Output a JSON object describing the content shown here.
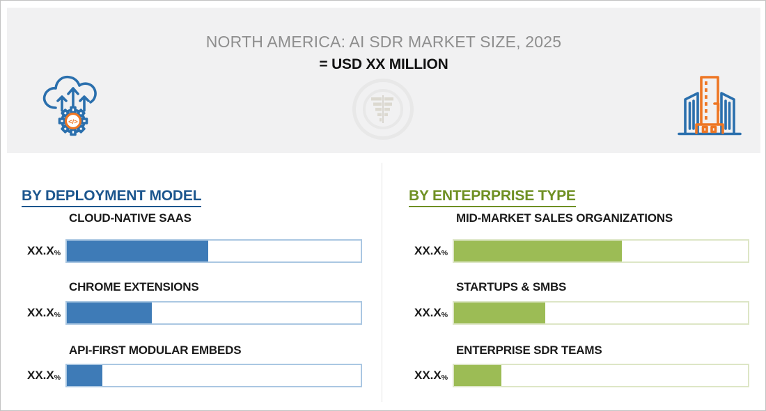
{
  "header": {
    "title": "NORTH AMERICA: AI SDR MARKET SIZE, 2025",
    "subtitle": "= USD XX MILLION",
    "left_icon": "cloud-code-gear-icon",
    "right_icon": "office-buildings-icon",
    "watermark_icon": "concentric-rings-logo-watermark"
  },
  "colors": {
    "header_background": "#f1f1f2",
    "title_gray": "#8e8e8e",
    "label_black": "#1a1a1a",
    "icon_blue": "#2a6fad",
    "icon_orange": "#ee7623",
    "deployment_accent": "#1c568e",
    "deployment_bar_fill": "#3e7bb7",
    "deployment_bar_border": "#aac7e2",
    "enterprise_accent": "#6f9023",
    "enterprise_bar_fill": "#9cbc55",
    "enterprise_bar_border": "#dde6c6"
  },
  "panels": [
    {
      "heading": "BY DEPLOYMENT MODEL",
      "colors": {
        "heading": "#1c568e",
        "fill": "#3e7bb7",
        "track_border": "#aac7e2"
      },
      "items": [
        {
          "label": "CLOUD-NATIVE SAAS",
          "value": "XX.X",
          "unit": "%",
          "fill_pct": 48
        },
        {
          "label": "CHROME EXTENSIONS",
          "value": "XX.X",
          "unit": "%",
          "fill_pct": 29
        },
        {
          "label": "API-FIRST MODULAR EMBEDS",
          "value": "XX.X",
          "unit": "%",
          "fill_pct": 12
        }
      ]
    },
    {
      "heading": "BY ENTEPRPRISE TYPE",
      "colors": {
        "heading": "#6f9023",
        "fill": "#9cbc55",
        "track_border": "#dde6c6"
      },
      "items": [
        {
          "label": "MID-MARKET SALES ORGANIZATIONS",
          "value": "XX.X",
          "unit": "%",
          "fill_pct": 57
        },
        {
          "label": "STARTUPS & SMBS",
          "value": "XX.X",
          "unit": "%",
          "fill_pct": 31
        },
        {
          "label": "ENTERPRISE SDR TEAMS",
          "value": "XX.X",
          "unit": "%",
          "fill_pct": 16
        }
      ]
    }
  ],
  "chart_data": [
    {
      "type": "bar",
      "orientation": "horizontal",
      "title": "BY DEPLOYMENT MODEL",
      "categories": [
        "CLOUD-NATIVE SAAS",
        "CHROME EXTENSIONS",
        "API-FIRST MODULAR EMBEDS"
      ],
      "value_labels": [
        "XX.X%",
        "XX.X%",
        "XX.X%"
      ],
      "values_visual_fraction_of_track_pct": [
        48,
        29,
        12
      ],
      "bar_color": "#3e7bb7",
      "track_border_color": "#aac7e2",
      "note": "numeric values masked as XX.X% in source image"
    },
    {
      "type": "bar",
      "orientation": "horizontal",
      "title": "BY ENTEPRPRISE TYPE",
      "categories": [
        "MID-MARKET SALES ORGANIZATIONS",
        "STARTUPS & SMBS",
        "ENTERPRISE SDR TEAMS"
      ],
      "value_labels": [
        "XX.X%",
        "XX.X%",
        "XX.X%"
      ],
      "values_visual_fraction_of_track_pct": [
        57,
        31,
        16
      ],
      "bar_color": "#9cbc55",
      "track_border_color": "#dde6c6",
      "note": "numeric values masked as XX.X% in source image"
    }
  ]
}
